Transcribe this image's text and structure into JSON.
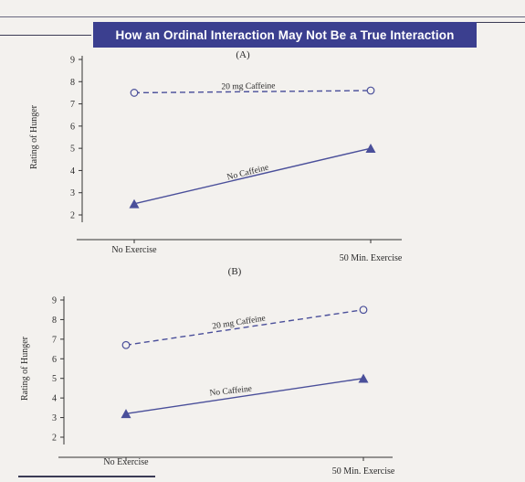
{
  "header": {
    "title": "How an Ordinal Interaction May Not Be a True Interaction",
    "bar_color": "#3b3f8f"
  },
  "chart_data": [
    {
      "type": "line",
      "panel_label": "(A)",
      "ylabel": "Rating of Hunger",
      "ylim": [
        2,
        9
      ],
      "yticks": [
        "2",
        "3",
        "4",
        "5",
        "6",
        "7",
        "8",
        "9"
      ],
      "categories": [
        "No Exercise",
        "50 Min. Exercise"
      ],
      "series": [
        {
          "name": "20 mg Caffeine",
          "values": [
            7.5,
            7.6
          ],
          "style": "dashed",
          "marker": "open-circle"
        },
        {
          "name": "No Caffeine",
          "values": [
            2.5,
            5.0
          ],
          "style": "solid",
          "marker": "filled-triangle"
        }
      ],
      "line_color": "#4a4f9a"
    },
    {
      "type": "line",
      "panel_label": "(B)",
      "ylabel": "Rating of Hunger",
      "ylim": [
        2,
        9
      ],
      "yticks": [
        "2",
        "3",
        "4",
        "5",
        "6",
        "7",
        "8",
        "9"
      ],
      "categories": [
        "No Exercise",
        "50 Min. Exercise"
      ],
      "series": [
        {
          "name": "20 mg Caffeine",
          "values": [
            6.7,
            8.5
          ],
          "style": "dashed",
          "marker": "open-circle"
        },
        {
          "name": "No Caffeine",
          "values": [
            3.2,
            5.0
          ],
          "style": "solid",
          "marker": "filled-triangle"
        }
      ],
      "line_color": "#4a4f9a"
    }
  ]
}
